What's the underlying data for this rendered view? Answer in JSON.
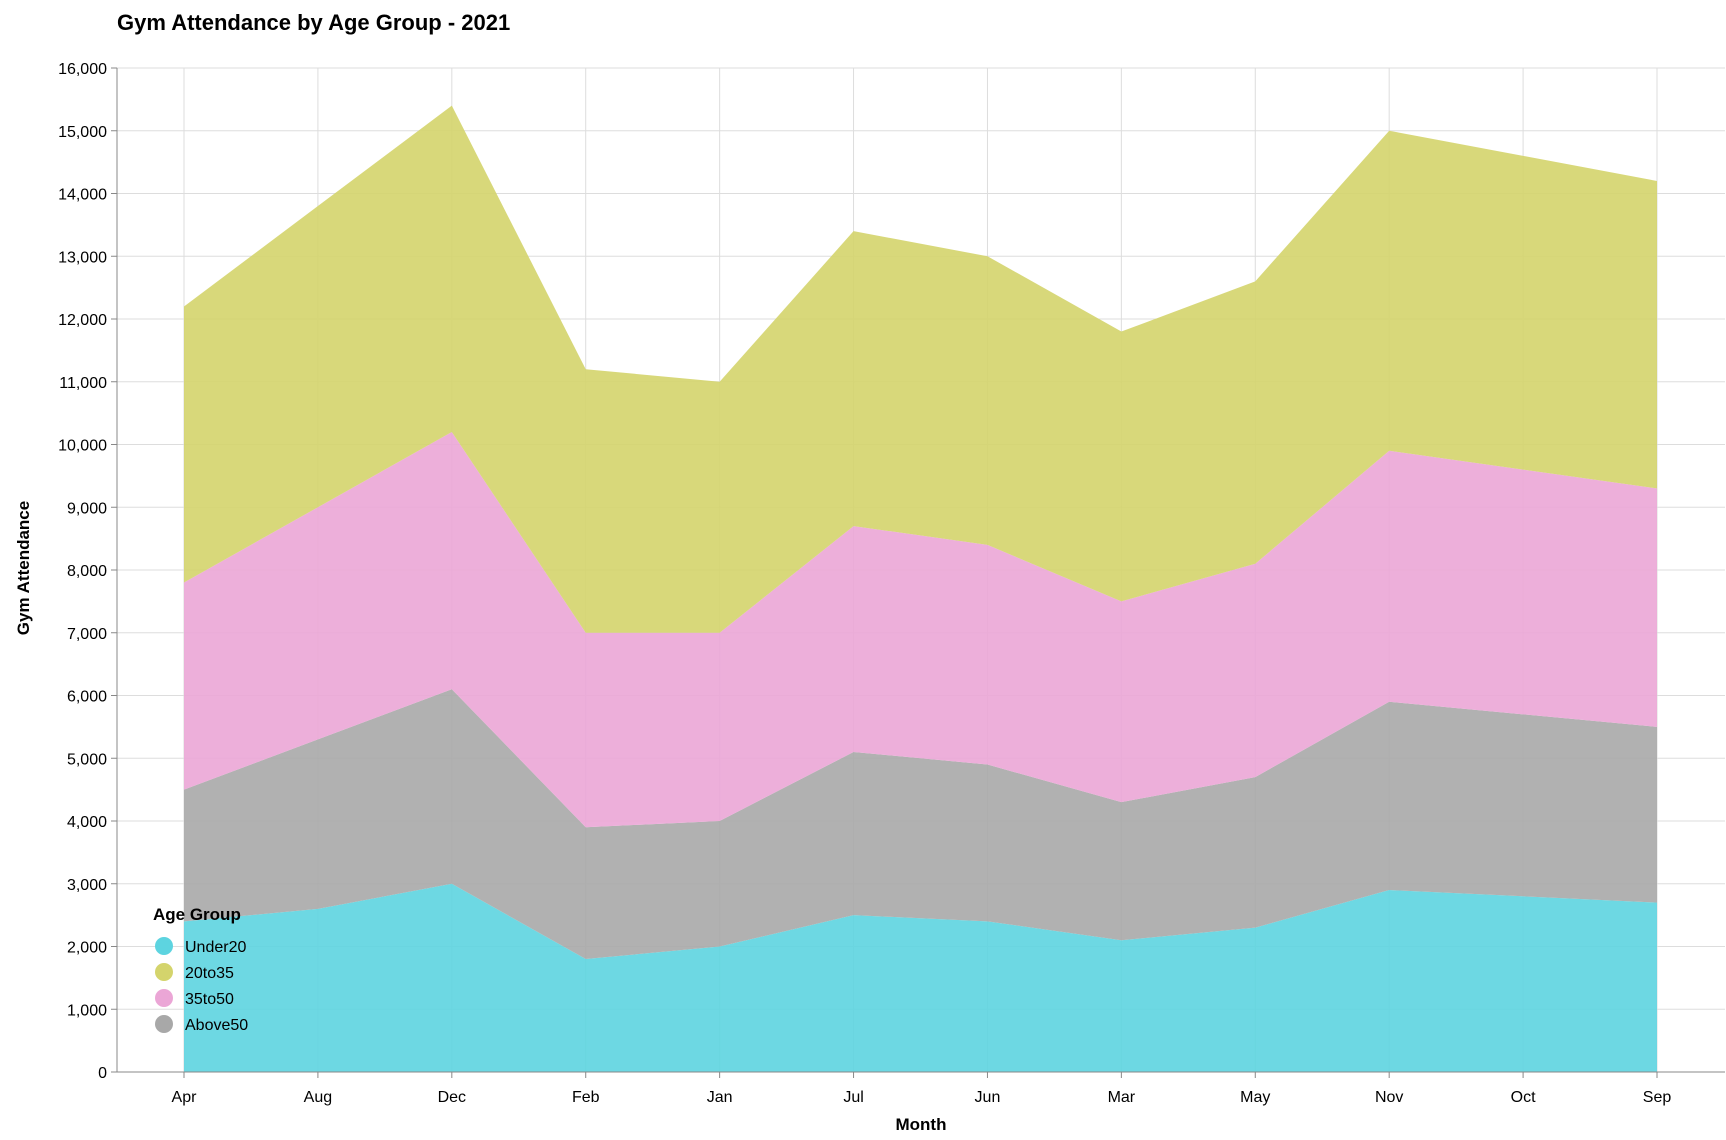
{
  "chart_data": {
    "type": "area",
    "stacked": true,
    "title": "Gym Attendance by Age Group - 2021",
    "xlabel": "Month",
    "ylabel": "Gym Attendance",
    "ylim": [
      0,
      16000
    ],
    "y_ticks": [
      0,
      1000,
      2000,
      3000,
      4000,
      5000,
      6000,
      7000,
      8000,
      9000,
      10000,
      11000,
      12000,
      13000,
      14000,
      15000,
      16000
    ],
    "y_tick_labels": [
      "0",
      "1,000",
      "2,000",
      "3,000",
      "4,000",
      "5,000",
      "6,000",
      "7,000",
      "8,000",
      "9,000",
      "10,000",
      "11,000",
      "12,000",
      "13,000",
      "14,000",
      "15,000",
      "16,000"
    ],
    "categories": [
      "Apr",
      "Aug",
      "Dec",
      "Feb",
      "Jan",
      "Jul",
      "Jun",
      "Mar",
      "May",
      "Nov",
      "Oct",
      "Sep"
    ],
    "grid": true,
    "legend": {
      "title": "Age Group",
      "position": "bottom-left"
    },
    "series": [
      {
        "name": "Under20",
        "color": "#5dd4e0",
        "values": [
          2400,
          2600,
          3000,
          1800,
          2000,
          2500,
          2400,
          2100,
          2300,
          2900,
          2800,
          2700
        ]
      },
      {
        "name": "Above50",
        "color": "#a8a8a8",
        "values": [
          2100,
          2700,
          3100,
          2100,
          2000,
          2600,
          2500,
          2200,
          2400,
          3000,
          2900,
          2800
        ]
      },
      {
        "name": "35to50",
        "color": "#eba6d6",
        "values": [
          3300,
          3700,
          4100,
          3100,
          3000,
          3600,
          3500,
          3200,
          3400,
          4000,
          3900,
          3800
        ]
      },
      {
        "name": "20to35",
        "color": "#d4d46c",
        "values": [
          4400,
          4800,
          5200,
          4200,
          4000,
          4700,
          4600,
          4300,
          4500,
          5100,
          5000,
          4900
        ]
      }
    ],
    "legend_order": [
      "Under20",
      "20to35",
      "35to50",
      "Above50"
    ]
  }
}
